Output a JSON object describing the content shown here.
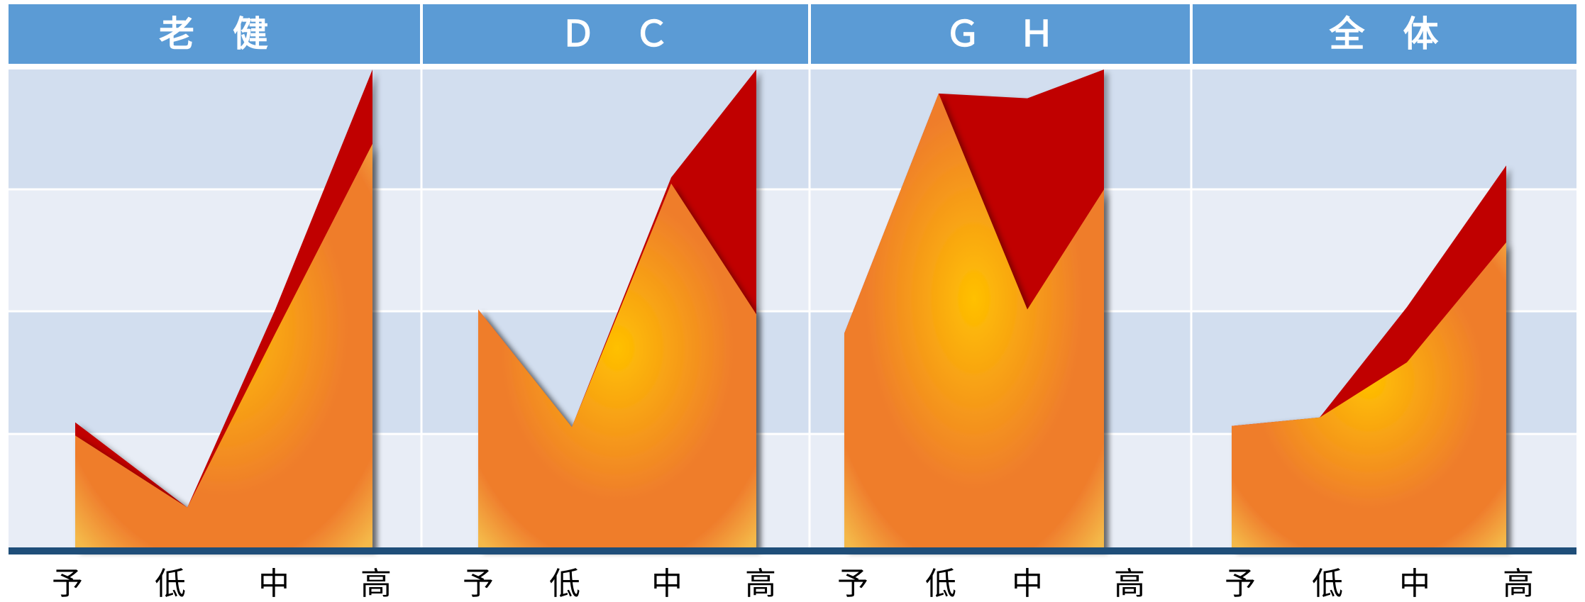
{
  "chart_data": {
    "type": "area",
    "categories": [
      "予",
      "低",
      "中",
      "高"
    ],
    "ylim": [
      0,
      400
    ],
    "grid": true,
    "legend": "none",
    "colors": {
      "header": "#5b9bd5",
      "band_dark": "#d2deef",
      "band_light": "#e8edf6",
      "front_center": "#ffc000",
      "front_mid": "#ef7d2c",
      "front_edge": "#f4b949",
      "back": "#c00000",
      "baseline": "#1f4e79"
    },
    "panels": [
      {
        "title": "老　健",
        "back_values": [
          106,
          35,
          200,
          400
        ],
        "front_values": [
          95,
          35,
          180,
          338
        ]
      },
      {
        "title": "Ｄ　Ｃ",
        "back_values": [
          200,
          102,
          310,
          400
        ],
        "front_values": [
          200,
          102,
          305,
          196
        ]
      },
      {
        "title": "Ｇ　Ｈ",
        "back_values": [
          180,
          380,
          376,
          400
        ],
        "front_values": [
          180,
          380,
          200,
          300
        ]
      },
      {
        "title": "全　体",
        "back_values": [
          103,
          110,
          202,
          320
        ],
        "front_values": [
          103,
          110,
          156,
          256
        ]
      }
    ]
  }
}
